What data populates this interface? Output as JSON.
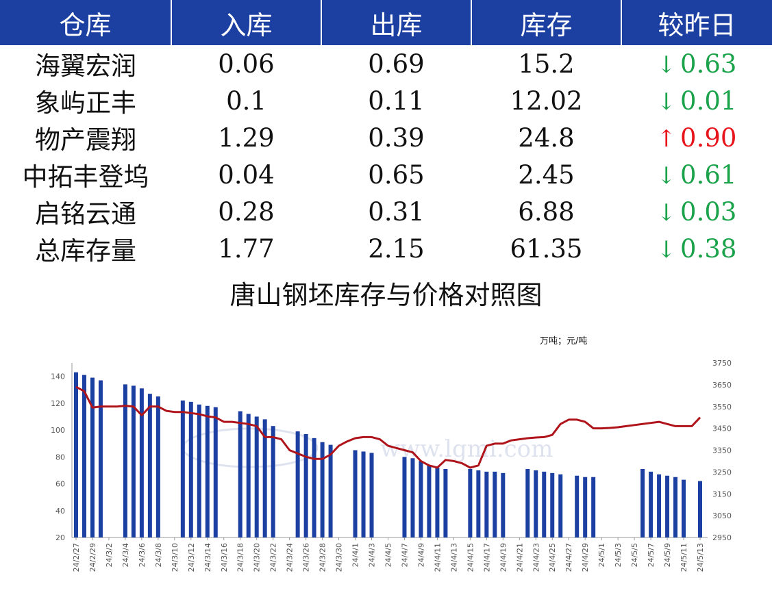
{
  "table": {
    "headers": [
      "仓库",
      "入库",
      "出库",
      "库存",
      "较昨日"
    ],
    "rows": [
      {
        "name": "海翼宏润",
        "in": "0.06",
        "out": "0.69",
        "stock": "15.2",
        "dir": "down",
        "arrow": "↓",
        "change": "0.63"
      },
      {
        "name": "象屿正丰",
        "in": "0.1",
        "out": "0.11",
        "stock": "12.02",
        "dir": "down",
        "arrow": "↓",
        "change": "0.01"
      },
      {
        "name": "物产震翔",
        "in": "1.29",
        "out": "0.39",
        "stock": "24.8",
        "dir": "up",
        "arrow": "↑",
        "change": "0.90"
      },
      {
        "name": "中拓丰登坞",
        "in": "0.04",
        "out": "0.65",
        "stock": "2.45",
        "dir": "down",
        "arrow": "↓",
        "change": "0.61"
      },
      {
        "name": "启铭云通",
        "in": "0.28",
        "out": "0.31",
        "stock": "6.88",
        "dir": "down",
        "arrow": "↓",
        "change": "0.03"
      },
      {
        "name": "总库存量",
        "in": "1.77",
        "out": "2.15",
        "stock": "61.35",
        "dir": "down",
        "arrow": "↓",
        "change": "0.38"
      }
    ],
    "colors": {
      "header_bg": "#1c3fa2",
      "down": "#1aa34a",
      "up": "#e8141b"
    }
  },
  "chart_title": "唐山钢坯库存与价格对照图",
  "unit_label": "万吨；元/吨",
  "watermark": "www.lgmi.com",
  "chart_data": {
    "type": "bar",
    "x": [
      "24/2/27",
      "24/2/28",
      "24/2/29",
      "24/3/1",
      "24/3/2",
      "24/3/3",
      "24/3/4",
      "24/3/5",
      "24/3/6",
      "24/3/7",
      "24/3/8",
      "24/3/9",
      "24/3/10",
      "24/3/11",
      "24/3/12",
      "24/3/13",
      "24/3/14",
      "24/3/15",
      "24/3/16",
      "24/3/17",
      "24/3/18",
      "24/3/19",
      "24/3/20",
      "24/3/21",
      "24/3/22",
      "24/3/23",
      "24/3/24",
      "24/3/25",
      "24/3/26",
      "24/3/27",
      "24/3/28",
      "24/3/29",
      "24/3/30",
      "24/3/31",
      "24/4/1",
      "24/4/2",
      "24/4/3",
      "24/4/4",
      "24/4/5",
      "24/4/6",
      "24/4/7",
      "24/4/8",
      "24/4/9",
      "24/4/10",
      "24/4/11",
      "24/4/12",
      "24/4/13",
      "24/4/14",
      "24/4/15",
      "24/4/16",
      "24/4/17",
      "24/4/18",
      "24/4/19",
      "24/4/20",
      "24/4/21",
      "24/4/22",
      "24/4/23",
      "24/4/24",
      "24/4/25",
      "24/4/26",
      "24/4/27",
      "24/4/28",
      "24/4/29",
      "24/4/30",
      "24/5/1",
      "24/5/2",
      "24/5/3",
      "24/5/4",
      "24/5/5",
      "24/5/6",
      "24/5/7",
      "24/5/8",
      "24/5/9",
      "24/5/10",
      "24/5/11",
      "24/5/12",
      "24/5/13"
    ],
    "x_tick_labels": [
      "24/2/27",
      "24/2/29",
      "24/3/2",
      "24/3/4",
      "24/3/6",
      "24/3/8",
      "24/3/10",
      "24/3/12",
      "24/3/14",
      "24/3/16",
      "24/3/18",
      "24/3/20",
      "24/3/22",
      "24/3/24",
      "24/3/26",
      "24/3/28",
      "24/3/30",
      "24/4/1",
      "24/4/3",
      "24/4/5",
      "24/4/7",
      "24/4/9",
      "24/4/11",
      "24/4/13",
      "24/4/15",
      "24/4/17",
      "24/4/19",
      "24/4/21",
      "24/4/23",
      "24/4/25",
      "24/4/27",
      "24/4/29",
      "24/5/1",
      "24/5/3",
      "24/5/5",
      "24/5/7",
      "24/5/9",
      "24/5/11",
      "24/5/13"
    ],
    "series": [
      {
        "name": "库存",
        "type": "bar",
        "axis": "left",
        "color": "#1c3fa2",
        "values": [
          143,
          141,
          139,
          137,
          null,
          null,
          134,
          133,
          131,
          127,
          125,
          null,
          null,
          122,
          121,
          119,
          118,
          117,
          null,
          null,
          114,
          112,
          110,
          108,
          103,
          null,
          null,
          99,
          97,
          94,
          91,
          89,
          null,
          null,
          85,
          84,
          83,
          null,
          null,
          null,
          80,
          79,
          77,
          74,
          72,
          71,
          null,
          null,
          71,
          70,
          69,
          69,
          68,
          null,
          null,
          71,
          70,
          69,
          68,
          67,
          null,
          66,
          65,
          65,
          null,
          null,
          null,
          null,
          null,
          71,
          69,
          67,
          66,
          65,
          63,
          null,
          62
        ]
      },
      {
        "type": "line",
        "axis": "right",
        "color": "#b0141b",
        "values": [
          3640,
          3620,
          3545,
          3550,
          3550,
          3550,
          3553,
          3550,
          3510,
          3550,
          3550,
          3530,
          3525,
          3525,
          3520,
          3515,
          3505,
          3500,
          3480,
          3480,
          3475,
          3470,
          3460,
          3410,
          3410,
          3400,
          3350,
          3335,
          3320,
          3310,
          3310,
          3330,
          3370,
          3390,
          3405,
          3410,
          3410,
          3400,
          3370,
          3360,
          3350,
          3340,
          3300,
          3280,
          3270,
          3305,
          3300,
          3290,
          3270,
          3280,
          3370,
          3380,
          3380,
          3395,
          3400,
          3405,
          3408,
          3410,
          3420,
          3470,
          3490,
          3490,
          3480,
          3450,
          3450,
          3452,
          3455,
          3460,
          3465,
          3470,
          3475,
          3480,
          3470,
          3460,
          3460,
          3460,
          3500
        ]
      }
    ],
    "y_left": {
      "ticks": [
        20,
        40,
        60,
        80,
        100,
        120,
        140
      ],
      "range": [
        20,
        150
      ]
    },
    "y_right": {
      "ticks": [
        2950,
        3050,
        3150,
        3250,
        3350,
        3450,
        3550,
        3650,
        3750
      ],
      "range": [
        2950,
        3750
      ]
    },
    "grid": false,
    "legend": "none"
  }
}
